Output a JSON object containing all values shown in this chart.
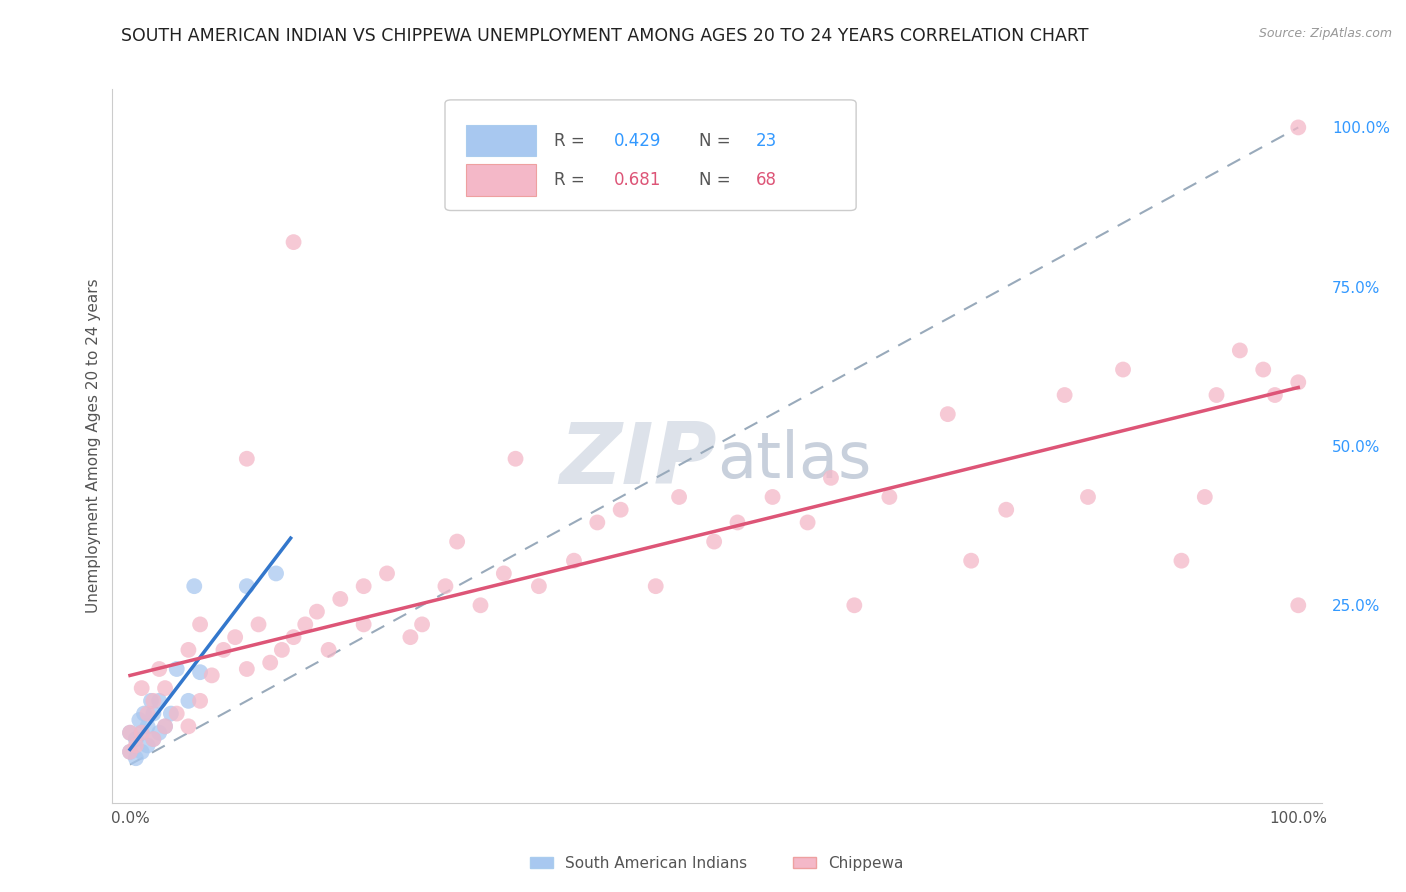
{
  "title": "SOUTH AMERICAN INDIAN VS CHIPPEWA UNEMPLOYMENT AMONG AGES 20 TO 24 YEARS CORRELATION CHART",
  "source": "Source: ZipAtlas.com",
  "ylabel": "Unemployment Among Ages 20 to 24 years",
  "R_blue": 0.429,
  "N_blue": 23,
  "R_pink": 0.681,
  "N_pink": 68,
  "blue_color": "#a8c8f0",
  "pink_color": "#f4b8c8",
  "blue_line_color": "#3377cc",
  "pink_line_color": "#dd5577",
  "diagonal_color": "#99aabb",
  "watermark_zip_color": "#dde2ea",
  "watermark_atlas_color": "#c8d0dc",
  "bg_color": "#ffffff",
  "grid_color": "#cccccc",
  "title_color": "#222222",
  "source_color": "#999999",
  "ylabel_color": "#555555",
  "right_tick_color": "#3399ff",
  "legend1_R_color": "#3399ff",
  "legend1_N_color": "#3399ff",
  "legend2_R_color": "#dd5577",
  "legend2_N_color": "#dd5577",
  "blue_x": [
    0.0,
    0.0,
    0.005,
    0.005,
    0.008,
    0.01,
    0.01,
    0.012,
    0.015,
    0.015,
    0.018,
    0.02,
    0.02,
    0.025,
    0.025,
    0.03,
    0.035,
    0.04,
    0.05,
    0.055,
    0.06,
    0.1,
    0.125
  ],
  "blue_y": [
    0.02,
    0.05,
    0.01,
    0.04,
    0.07,
    0.02,
    0.05,
    0.08,
    0.03,
    0.06,
    0.1,
    0.04,
    0.08,
    0.05,
    0.1,
    0.06,
    0.08,
    0.15,
    0.1,
    0.28,
    0.145,
    0.28,
    0.3
  ],
  "pink_x": [
    0.0,
    0.0,
    0.005,
    0.01,
    0.01,
    0.015,
    0.02,
    0.02,
    0.025,
    0.03,
    0.03,
    0.04,
    0.05,
    0.05,
    0.06,
    0.06,
    0.07,
    0.08,
    0.09,
    0.1,
    0.1,
    0.11,
    0.12,
    0.13,
    0.14,
    0.14,
    0.15,
    0.16,
    0.17,
    0.18,
    0.2,
    0.2,
    0.22,
    0.24,
    0.25,
    0.27,
    0.28,
    0.3,
    0.32,
    0.33,
    0.35,
    0.38,
    0.4,
    0.42,
    0.45,
    0.47,
    0.5,
    0.52,
    0.55,
    0.58,
    0.6,
    0.62,
    0.65,
    0.7,
    0.72,
    0.75,
    0.8,
    0.82,
    0.85,
    0.9,
    0.92,
    0.93,
    0.95,
    0.97,
    0.98,
    1.0,
    1.0,
    1.0
  ],
  "pink_y": [
    0.02,
    0.05,
    0.03,
    0.05,
    0.12,
    0.08,
    0.04,
    0.1,
    0.15,
    0.06,
    0.12,
    0.08,
    0.18,
    0.06,
    0.22,
    0.1,
    0.14,
    0.18,
    0.2,
    0.48,
    0.15,
    0.22,
    0.16,
    0.18,
    0.2,
    0.82,
    0.22,
    0.24,
    0.18,
    0.26,
    0.22,
    0.28,
    0.3,
    0.2,
    0.22,
    0.28,
    0.35,
    0.25,
    0.3,
    0.48,
    0.28,
    0.32,
    0.38,
    0.4,
    0.28,
    0.42,
    0.35,
    0.38,
    0.42,
    0.38,
    0.45,
    0.25,
    0.42,
    0.55,
    0.32,
    0.4,
    0.58,
    0.42,
    0.62,
    0.32,
    0.42,
    0.58,
    0.65,
    0.62,
    0.58,
    0.25,
    0.6,
    1.0
  ]
}
